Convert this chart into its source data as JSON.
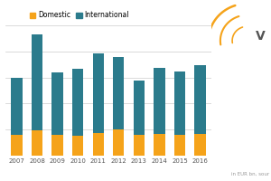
{
  "years": [
    "2007",
    "2008",
    "2009",
    "2010",
    "2011",
    "2012",
    "2013",
    "2014",
    "2015",
    "2016"
  ],
  "domestic": [
    0.2,
    0.24,
    0.2,
    0.19,
    0.22,
    0.25,
    0.2,
    0.21,
    0.2,
    0.21
  ],
  "international": [
    0.55,
    0.92,
    0.6,
    0.64,
    0.76,
    0.7,
    0.52,
    0.63,
    0.61,
    0.66
  ],
  "domestic_color": "#f5a31a",
  "international_color": "#2b7b8c",
  "background_color": "#ffffff",
  "legend_domestic": "Domestic",
  "legend_international": "International",
  "note": "in EUR bn, sour",
  "ylim": [
    0,
    1.25
  ],
  "bar_width": 0.55,
  "grid_color": "#cccccc",
  "footer_color": "#f0a500",
  "footer_text_color": "#888888",
  "logo_area_color": "#f7f7f7"
}
